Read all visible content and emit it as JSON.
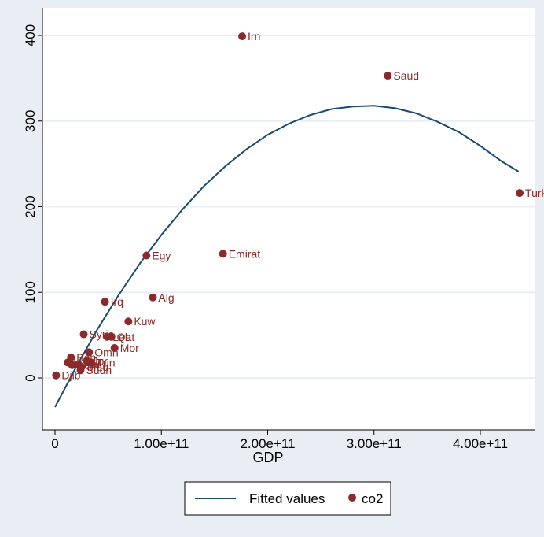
{
  "chart_data": {
    "type": "scatter",
    "xlabel": "GDP",
    "ylabel": "",
    "xlim": [
      0,
      440000000000
    ],
    "ylim": [
      -40,
      400
    ],
    "x_ticks": [
      {
        "value": 0,
        "label": "0"
      },
      {
        "value": 100000000000,
        "label": "1.00e+11"
      },
      {
        "value": 200000000000,
        "label": "2.00e+11"
      },
      {
        "value": 300000000000,
        "label": "3.00e+11"
      },
      {
        "value": 400000000000,
        "label": "4.00e+11"
      }
    ],
    "y_ticks": [
      {
        "value": 0,
        "label": "0"
      },
      {
        "value": 100,
        "label": "100"
      },
      {
        "value": 200,
        "label": "200"
      },
      {
        "value": 300,
        "label": "300"
      },
      {
        "value": 400,
        "label": "400"
      }
    ],
    "grid": true,
    "legend_position": "bottom",
    "colors": {
      "background": "#e8eef3",
      "plot_area": "#ffffff",
      "grid": "#e8eef3",
      "fit_line": "#1a4a6e",
      "marker": "#8b2a2a"
    },
    "series": [
      {
        "name": "co2",
        "kind": "scatter",
        "points": [
          {
            "label": "Irn",
            "x": 176000000000,
            "y": 399
          },
          {
            "label": "Saud",
            "x": 313000000000,
            "y": 353
          },
          {
            "label": "Turk",
            "x": 437000000000,
            "y": 216
          },
          {
            "label": "Emirat",
            "x": 158000000000,
            "y": 145
          },
          {
            "label": "Egy",
            "x": 86000000000,
            "y": 143
          },
          {
            "label": "Alg",
            "x": 92000000000,
            "y": 94
          },
          {
            "label": "Irq",
            "x": 47000000000,
            "y": 89
          },
          {
            "label": "Kuw",
            "x": 69000000000,
            "y": 66
          },
          {
            "label": "Syria",
            "x": 27000000000,
            "y": 51
          },
          {
            "label": "Leb",
            "x": 49000000000,
            "y": 48
          },
          {
            "label": "Qat",
            "x": 53000000000,
            "y": 48
          },
          {
            "label": "Mor",
            "x": 56000000000,
            "y": 35
          },
          {
            "label": "Omn",
            "x": 32000000000,
            "y": 30
          },
          {
            "label": "Bah",
            "x": 15000000000,
            "y": 24
          },
          {
            "label": "Jor",
            "x": 30000000000,
            "y": 20
          },
          {
            "label": "Lib",
            "x": 12000000000,
            "y": 18
          },
          {
            "label": "Tun",
            "x": 34000000000,
            "y": 18
          },
          {
            "label": "Yem",
            "x": 16000000000,
            "y": 15
          },
          {
            "label": "Pal",
            "x": 22000000000,
            "y": 16
          },
          {
            "label": "Mau",
            "x": 25000000000,
            "y": 13
          },
          {
            "label": "Sudn",
            "x": 24000000000,
            "y": 9
          },
          {
            "label": "Djib",
            "x": 1000000000,
            "y": 3
          }
        ]
      },
      {
        "name": "Fitted values",
        "kind": "line",
        "points": [
          {
            "x": 0,
            "y": -34
          },
          {
            "x": 20000000000,
            "y": 13
          },
          {
            "x": 40000000000,
            "y": 57
          },
          {
            "x": 60000000000,
            "y": 97
          },
          {
            "x": 80000000000,
            "y": 134
          },
          {
            "x": 100000000000,
            "y": 167
          },
          {
            "x": 120000000000,
            "y": 197
          },
          {
            "x": 140000000000,
            "y": 224
          },
          {
            "x": 160000000000,
            "y": 247
          },
          {
            "x": 180000000000,
            "y": 267
          },
          {
            "x": 200000000000,
            "y": 284
          },
          {
            "x": 220000000000,
            "y": 297
          },
          {
            "x": 240000000000,
            "y": 307
          },
          {
            "x": 260000000000,
            "y": 314
          },
          {
            "x": 280000000000,
            "y": 317
          },
          {
            "x": 300000000000,
            "y": 318
          },
          {
            "x": 320000000000,
            "y": 315
          },
          {
            "x": 340000000000,
            "y": 309
          },
          {
            "x": 360000000000,
            "y": 299
          },
          {
            "x": 380000000000,
            "y": 287
          },
          {
            "x": 400000000000,
            "y": 271
          },
          {
            "x": 420000000000,
            "y": 253
          },
          {
            "x": 436000000000,
            "y": 241
          }
        ]
      }
    ],
    "legend": [
      {
        "name": "Fitted values",
        "kind": "line"
      },
      {
        "name": "co2",
        "kind": "marker"
      }
    ]
  }
}
